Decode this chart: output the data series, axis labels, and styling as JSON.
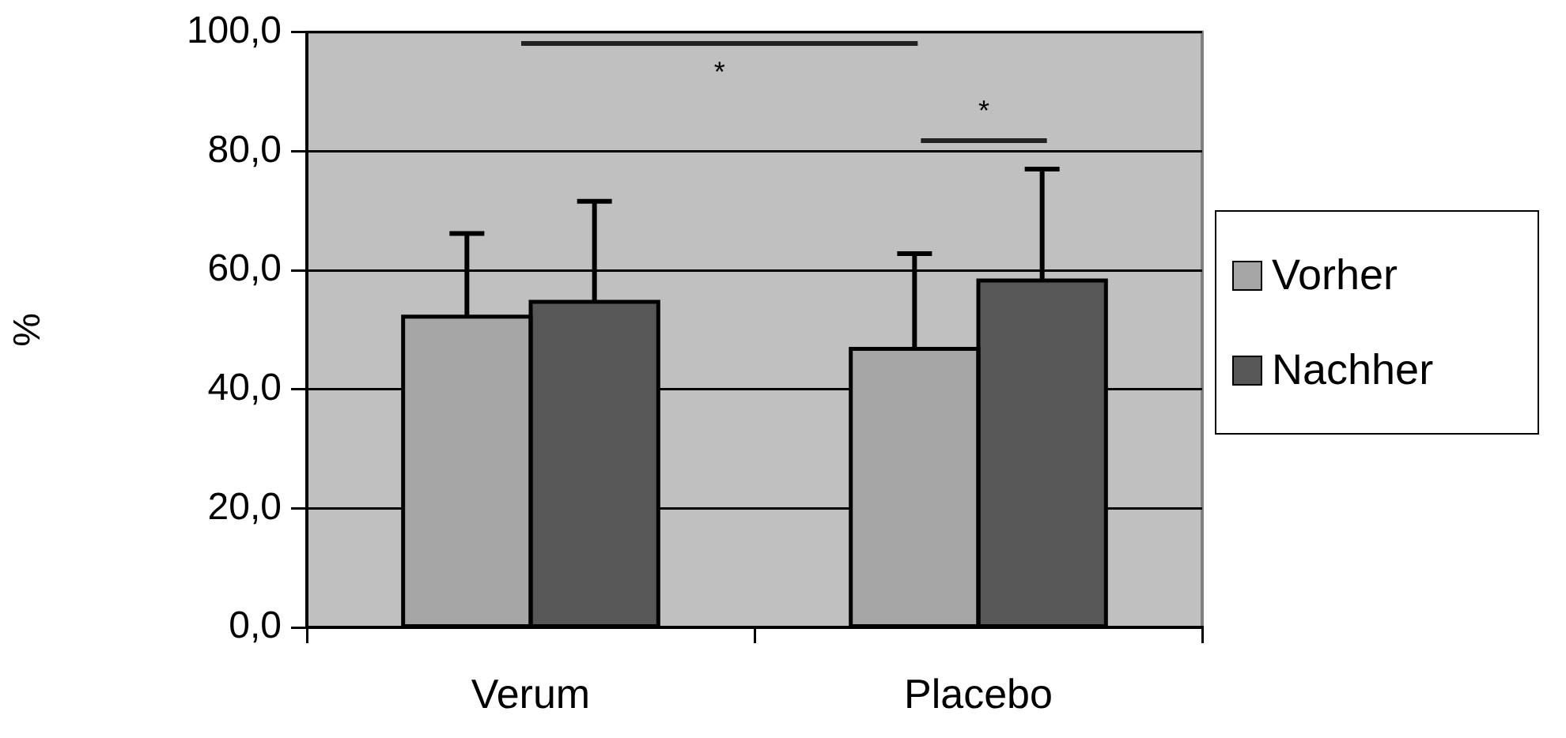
{
  "chart_data": {
    "type": "bar",
    "ylabel": "%",
    "categories": [
      "Verum",
      "Placebo"
    ],
    "series": [
      {
        "name": "Vorher",
        "color": "#a6a6a6",
        "values": [
          52.2,
          46.8
        ],
        "errors": [
          [
            52.2,
            66.2
          ],
          [
            46.8,
            62.8
          ]
        ]
      },
      {
        "name": "Nachher",
        "color": "#575757",
        "values": [
          54.7,
          58.3
        ],
        "errors": [
          [
            54.7,
            71.6
          ],
          [
            58.3,
            77.0
          ]
        ]
      }
    ],
    "ylim": [
      0,
      100
    ],
    "yticks": [
      {
        "value": 0,
        "label": "0,0"
      },
      {
        "value": 20,
        "label": "20,0"
      },
      {
        "value": 40,
        "label": "40,0"
      },
      {
        "value": 60,
        "label": "60,0"
      },
      {
        "value": 80,
        "label": "80,0"
      },
      {
        "value": 100,
        "label": "100,0"
      }
    ],
    "grid": "y",
    "legend": "right",
    "annotations": [
      "*",
      "*"
    ]
  }
}
